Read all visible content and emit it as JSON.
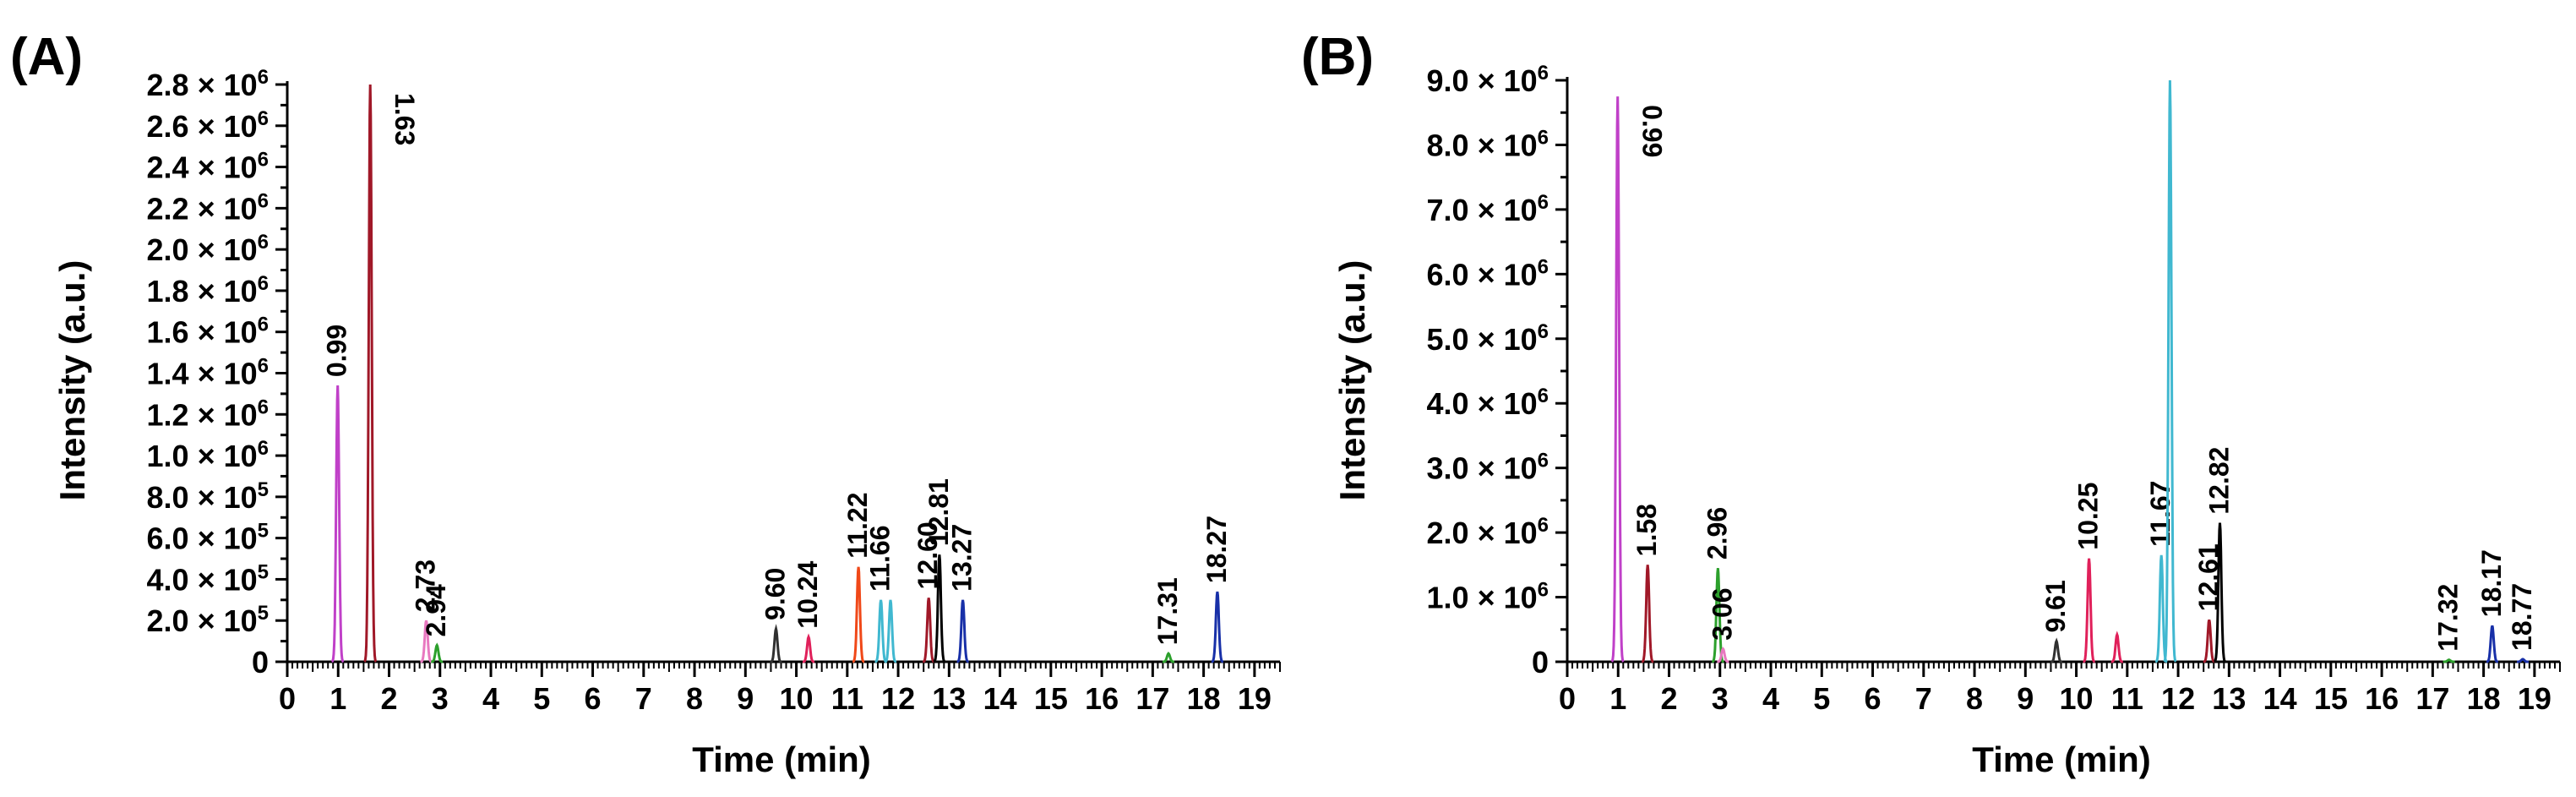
{
  "chart_data": [
    {
      "type": "line",
      "panel_label": "(A)",
      "xlabel": "Time (min)",
      "ylabel": "Intensity (a.u.)",
      "xlim": [
        0,
        19.5
      ],
      "ylim": [
        0,
        2800000
      ],
      "x_ticks": [
        "0",
        "1",
        "2",
        "3",
        "4",
        "5",
        "6",
        "7",
        "8",
        "9",
        "10",
        "11",
        "12",
        "13",
        "14",
        "15",
        "16",
        "17",
        "18",
        "19"
      ],
      "y_ticks": [
        {
          "value": 0,
          "label": "0"
        },
        {
          "value": 200000,
          "label": "2.0 × 10⁵"
        },
        {
          "value": 400000,
          "label": "4.0 × 10⁵"
        },
        {
          "value": 600000,
          "label": "6.0 × 10⁵"
        },
        {
          "value": 800000,
          "label": "8.0 × 10⁵"
        },
        {
          "value": 1000000,
          "label": "1.0 × 10⁶"
        },
        {
          "value": 1200000,
          "label": "1.2 × 10⁶"
        },
        {
          "value": 1400000,
          "label": "1.4 × 10⁶"
        },
        {
          "value": 1600000,
          "label": "1.6 × 10⁶"
        },
        {
          "value": 1800000,
          "label": "1.8 × 10⁶"
        },
        {
          "value": 2000000,
          "label": "2.0 × 10⁶"
        },
        {
          "value": 2200000,
          "label": "2.2 × 10⁶"
        },
        {
          "value": 2400000,
          "label": "2.4 × 10⁶"
        },
        {
          "value": 2600000,
          "label": "2.6 × 10⁶"
        },
        {
          "value": 2800000,
          "label": "2.8 × 10⁶"
        }
      ],
      "peaks": [
        {
          "time": 0.99,
          "intensity": 1340000,
          "color": "#c040c8",
          "label": "0.99"
        },
        {
          "time": 1.63,
          "intensity": 2800000,
          "color": "#a01828",
          "label": "1.63"
        },
        {
          "time": 2.73,
          "intensity": 200000,
          "color": "#e878c0",
          "label": "2.73"
        },
        {
          "time": 2.94,
          "intensity": 80000,
          "color": "#2ca02c",
          "label": "2.94"
        },
        {
          "time": 9.6,
          "intensity": 160000,
          "color": "#303030",
          "label": "9.60"
        },
        {
          "time": 10.24,
          "intensity": 120000,
          "color": "#e0205a",
          "label": "10.24"
        },
        {
          "time": 11.22,
          "intensity": 460000,
          "color": "#f04818",
          "label": "11.22"
        },
        {
          "time": 11.66,
          "intensity": 300000,
          "color": "#40b8d0",
          "label": "11.66"
        },
        {
          "time": 11.85,
          "intensity": 300000,
          "color": "#40b8d0",
          "label": ""
        },
        {
          "time": 12.6,
          "intensity": 310000,
          "color": "#a01828",
          "label": "12.60"
        },
        {
          "time": 12.81,
          "intensity": 520000,
          "color": "#000000",
          "label": "12.81"
        },
        {
          "time": 13.27,
          "intensity": 300000,
          "color": "#1830a8",
          "label": "13.27"
        },
        {
          "time": 17.31,
          "intensity": 40000,
          "color": "#2ca02c",
          "label": "17.31"
        },
        {
          "time": 18.27,
          "intensity": 340000,
          "color": "#1830a8",
          "label": "18.27"
        }
      ]
    },
    {
      "type": "line",
      "panel_label": "(B)",
      "xlabel": "Time (min)",
      "ylabel": "Intensity (a.u.)",
      "xlim": [
        0,
        19.5
      ],
      "ylim": [
        0,
        9000000
      ],
      "x_ticks": [
        "0",
        "1",
        "2",
        "3",
        "4",
        "5",
        "6",
        "7",
        "8",
        "9",
        "10",
        "11",
        "12",
        "13",
        "14",
        "15",
        "16",
        "17",
        "18",
        "19"
      ],
      "y_ticks": [
        {
          "value": 0,
          "label": "0"
        },
        {
          "value": 1000000,
          "label": "1.0 × 10⁶"
        },
        {
          "value": 2000000,
          "label": "2.0 × 10⁶"
        },
        {
          "value": 3000000,
          "label": "3.0 × 10⁶"
        },
        {
          "value": 4000000,
          "label": "4.0 × 10⁶"
        },
        {
          "value": 5000000,
          "label": "5.0 × 10⁶"
        },
        {
          "value": 6000000,
          "label": "6.0 × 10⁶"
        },
        {
          "value": 7000000,
          "label": "7.0 × 10⁶"
        },
        {
          "value": 8000000,
          "label": "8.0 × 10⁶"
        },
        {
          "value": 9000000,
          "label": "9.0 × 10⁶"
        }
      ],
      "peaks": [
        {
          "time": 0.99,
          "intensity": 8750000,
          "color": "#c040c8",
          "label": "0.99"
        },
        {
          "time": 1.58,
          "intensity": 1500000,
          "color": "#a01828",
          "label": "1.58"
        },
        {
          "time": 2.96,
          "intensity": 1450000,
          "color": "#2ca02c",
          "label": "2.96"
        },
        {
          "time": 3.06,
          "intensity": 200000,
          "color": "#e878c0",
          "label": "3.06"
        },
        {
          "time": 9.61,
          "intensity": 320000,
          "color": "#303030",
          "label": "9.61"
        },
        {
          "time": 10.25,
          "intensity": 1600000,
          "color": "#e0205a",
          "label": "10.25"
        },
        {
          "time": 10.8,
          "intensity": 420000,
          "color": "#e0205a",
          "label": ""
        },
        {
          "time": 11.67,
          "intensity": 1650000,
          "color": "#40b8d0",
          "label": "11.67"
        },
        {
          "time": 11.84,
          "intensity": 9000000,
          "color": "#40b8d0",
          "label": ""
        },
        {
          "time": 12.61,
          "intensity": 650000,
          "color": "#a01828",
          "label": "12.61"
        },
        {
          "time": 12.82,
          "intensity": 2150000,
          "color": "#000000",
          "label": "12.82"
        },
        {
          "time": 17.32,
          "intensity": 30000,
          "color": "#2ca02c",
          "label": "17.32"
        },
        {
          "time": 18.17,
          "intensity": 560000,
          "color": "#1830a8",
          "label": "18.17"
        },
        {
          "time": 18.77,
          "intensity": 40000,
          "color": "#1830a8",
          "label": "18.77"
        }
      ]
    }
  ]
}
